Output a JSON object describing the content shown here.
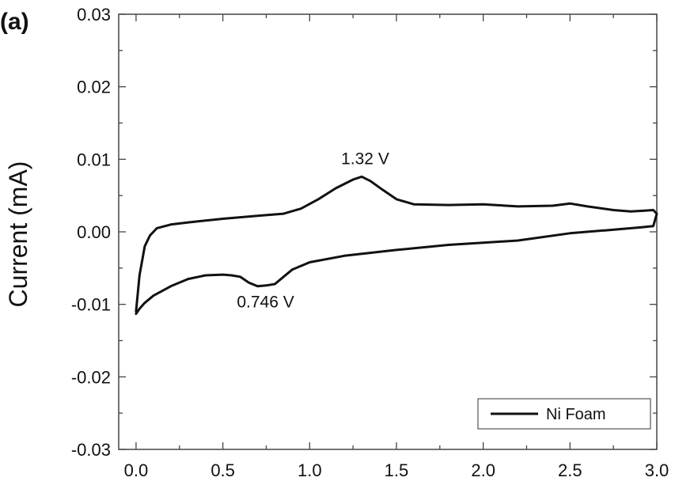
{
  "chart_data": {
    "type": "line",
    "panel_label": "(a)",
    "title": "",
    "xlabel": "",
    "ylabel": "Current (mA)",
    "xlim": [
      -0.1,
      3.0
    ],
    "ylim": [
      -0.03,
      0.03
    ],
    "x_ticks": [
      0.0,
      0.5,
      1.0,
      1.5,
      2.0,
      2.5,
      3.0
    ],
    "x_tick_labels": [
      "0.0",
      "0.5",
      "1.0",
      "1.5",
      "2.0",
      "2.5",
      "3.0"
    ],
    "y_ticks": [
      -0.03,
      -0.02,
      -0.01,
      0.0,
      0.01,
      0.02,
      0.03
    ],
    "y_tick_labels": [
      "-0.03",
      "-0.02",
      "-0.01",
      "0.00",
      "0.01",
      "0.02",
      "0.03"
    ],
    "grid": false,
    "legend": {
      "position": "bottom-right",
      "entries": [
        "Ni Foam"
      ]
    },
    "annotations": [
      {
        "text": "1.32 V",
        "x": 1.32,
        "y": 0.0078
      },
      {
        "text": "0.746 V",
        "x": 0.746,
        "y": -0.0076
      }
    ],
    "series": [
      {
        "name": "Ni Foam",
        "color": "#111111",
        "x": [
          0.0,
          0.02,
          0.05,
          0.08,
          0.12,
          0.2,
          0.3,
          0.5,
          0.7,
          0.85,
          0.95,
          1.05,
          1.15,
          1.25,
          1.3,
          1.35,
          1.42,
          1.5,
          1.6,
          1.8,
          2.0,
          2.2,
          2.4,
          2.5,
          2.6,
          2.75,
          2.85,
          2.92,
          2.98,
          3.0,
          2.98,
          2.9,
          2.7,
          2.5,
          2.2,
          2.0,
          1.8,
          1.5,
          1.2,
          1.0,
          0.9,
          0.85,
          0.8,
          0.75,
          0.7,
          0.65,
          0.6,
          0.55,
          0.5,
          0.4,
          0.3,
          0.2,
          0.1,
          0.05,
          0.02,
          0.0
        ],
        "y": [
          -0.011,
          -0.006,
          -0.002,
          -0.0005,
          0.0005,
          0.001,
          0.0013,
          0.0018,
          0.0022,
          0.0025,
          0.0032,
          0.0045,
          0.006,
          0.0072,
          0.0076,
          0.007,
          0.0058,
          0.0045,
          0.0038,
          0.0037,
          0.0038,
          0.0035,
          0.0036,
          0.0039,
          0.0035,
          0.003,
          0.0028,
          0.0029,
          0.003,
          0.0025,
          0.0008,
          0.0006,
          0.0002,
          -0.0002,
          -0.0012,
          -0.0015,
          -0.0018,
          -0.0025,
          -0.0033,
          -0.0042,
          -0.0052,
          -0.0062,
          -0.0072,
          -0.0074,
          -0.0075,
          -0.007,
          -0.0062,
          -0.006,
          -0.0059,
          -0.006,
          -0.0065,
          -0.0075,
          -0.0088,
          -0.0098,
          -0.0106,
          -0.0113
        ]
      }
    ]
  }
}
